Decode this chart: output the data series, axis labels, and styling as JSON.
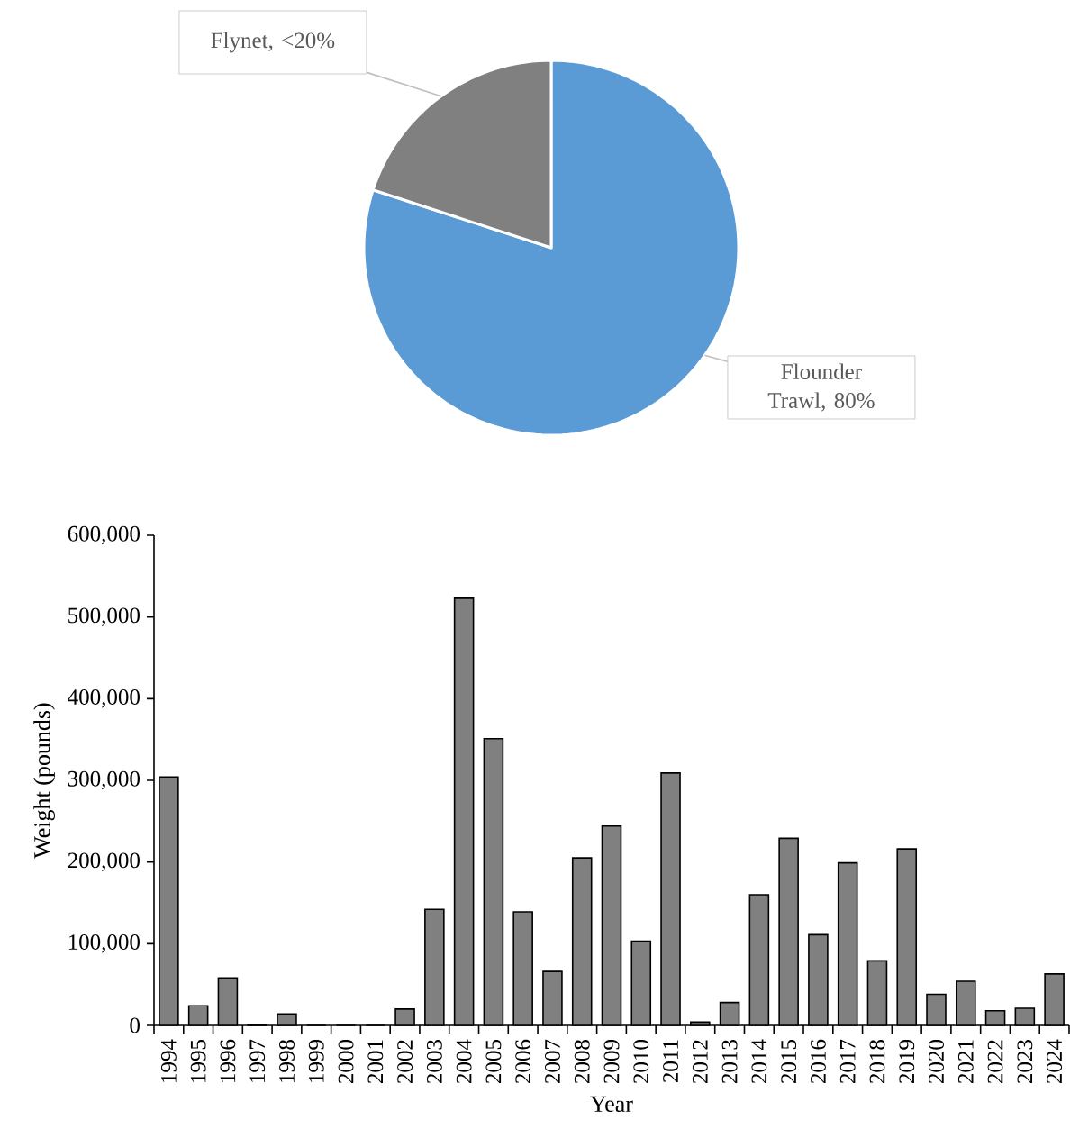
{
  "chart_data": [
    {
      "type": "pie",
      "categories": [
        "Flounder Trawl, 80%",
        "Flynet, <20%"
      ],
      "values": [
        80,
        20
      ],
      "colors": [
        "#5b9bd5",
        "#808080"
      ]
    },
    {
      "type": "bar",
      "xlabel": "Year",
      "ylabel": "Weight (pounds)",
      "color": "#808080",
      "categories": [
        "1994",
        "1995",
        "1996",
        "1997",
        "1998",
        "1999",
        "2000",
        "2001",
        "2002",
        "2003",
        "2004",
        "2005",
        "2006",
        "2007",
        "2008",
        "2009",
        "2010",
        "2011",
        "2012",
        "2013",
        "2014",
        "2015",
        "2016",
        "2017",
        "2018",
        "2019",
        "2020",
        "2021",
        "2022",
        "2023",
        "2024"
      ],
      "values": [
        304000,
        24000,
        58000,
        1000,
        14000,
        0,
        0,
        0,
        20000,
        142000,
        523000,
        351000,
        139000,
        66000,
        205000,
        244000,
        103000,
        309000,
        4000,
        28000,
        160000,
        229000,
        111000,
        199000,
        79000,
        216000,
        38000,
        54000,
        18000,
        21000,
        63000
      ],
      "ylim": [
        0,
        600000
      ],
      "yticks": [
        {
          "value": 0,
          "label": "0"
        },
        {
          "value": 100000,
          "label": "100,000"
        },
        {
          "value": 200000,
          "label": "200,000"
        },
        {
          "value": 300000,
          "label": "300,000"
        },
        {
          "value": 400000,
          "label": "400,000"
        },
        {
          "value": 500000,
          "label": "500,000"
        },
        {
          "value": 600000,
          "label": "600,000"
        }
      ]
    }
  ]
}
